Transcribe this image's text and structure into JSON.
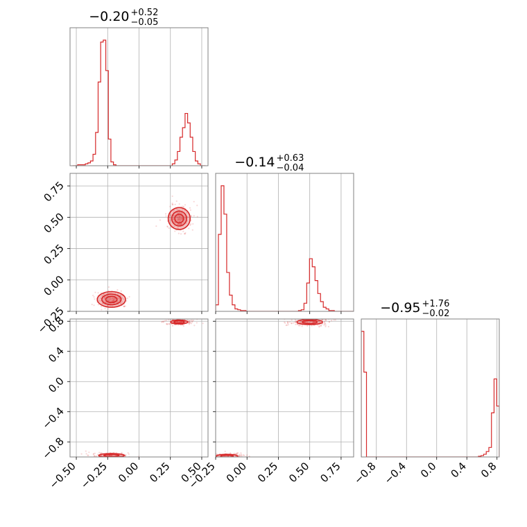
{
  "chart_data": {
    "type": "corner",
    "color": "#d62728",
    "grid": true,
    "parameters": [
      {
        "title": {
          "median": "−0.20",
          "plus": "+0.52",
          "minus": "−0.05"
        },
        "range": [
          -0.55,
          0.55
        ],
        "ticks": [
          -0.5,
          -0.25,
          0.0,
          0.25,
          0.5
        ],
        "tick_labels": [
          "−0.50",
          "−0.25",
          "0.00",
          "0.25",
          "0.50"
        ]
      },
      {
        "title": {
          "median": "−0.14",
          "plus": "+0.63",
          "minus": "−0.04"
        },
        "range": [
          -0.25,
          0.85
        ],
        "ticks": [
          -0.25,
          0.0,
          0.25,
          0.5,
          0.75
        ],
        "tick_labels": [
          "−0.25",
          "0.00",
          "0.25",
          "0.50",
          "0.75"
        ]
      },
      {
        "title": {
          "median": "−0.95",
          "plus": "+1.76",
          "minus": "−0.02"
        },
        "range": [
          -1.0,
          0.83
        ],
        "ticks": [
          -0.8,
          -0.4,
          0.0,
          0.4,
          0.8
        ],
        "tick_labels": [
          "−0.8",
          "−0.4",
          "0.0",
          "0.4",
          "0.8"
        ]
      }
    ],
    "histograms": [
      {
        "param": 0,
        "bin_edges_range": [
          -0.53,
          0.53
        ],
        "counts": [
          0,
          0,
          1,
          1,
          1,
          2,
          3,
          5,
          12,
          35,
          88,
          130,
          132,
          100,
          28,
          4,
          1,
          0,
          0,
          0,
          0,
          0,
          0,
          0,
          0,
          0,
          0,
          0,
          0,
          0,
          0,
          0,
          0,
          0,
          0,
          0,
          0,
          0,
          0,
          2,
          6,
          15,
          30,
          40,
          55,
          45,
          30,
          15,
          5,
          2,
          0,
          0
        ]
      },
      {
        "param": 1,
        "bin_edges_range": [
          -0.25,
          0.85
        ],
        "counts": [
          8,
          95,
          155,
          120,
          48,
          20,
          8,
          3,
          2,
          1,
          1,
          0,
          0,
          0,
          0,
          0,
          0,
          0,
          0,
          0,
          0,
          0,
          0,
          0,
          0,
          0,
          0,
          0,
          0,
          0,
          1,
          2,
          10,
          35,
          65,
          55,
          38,
          22,
          12,
          5,
          3,
          1,
          1,
          0,
          0,
          0,
          0,
          0,
          0,
          0
        ]
      },
      {
        "param": 2,
        "bin_edges_range": [
          -1.0,
          0.83
        ],
        "counts": [
          185,
          125,
          0,
          0,
          0,
          0,
          0,
          0,
          0,
          0,
          0,
          0,
          0,
          0,
          0,
          0,
          0,
          0,
          0,
          0,
          0,
          0,
          0,
          0,
          0,
          0,
          0,
          0,
          0,
          0,
          0,
          0,
          0,
          0,
          0,
          0,
          0,
          0,
          0,
          0,
          0,
          0,
          0,
          0,
          0,
          1,
          2,
          4,
          8,
          14,
          65,
          115,
          75
        ]
      }
    ],
    "density_2d": [
      {
        "x_param": 0,
        "y_param": 1,
        "modes": [
          {
            "center": [
              -0.22,
              -0.155
            ],
            "spread": [
              0.045,
              0.025
            ],
            "contour_levels": [
              1.0,
              1.7,
              2.5
            ]
          },
          {
            "center": [
              0.32,
              0.49
            ],
            "spread": [
              0.035,
              0.035
            ],
            "contour_levels": [
              1.0,
              1.7,
              2.5
            ]
          }
        ]
      },
      {
        "x_param": 0,
        "y_param": 2,
        "modes": [
          {
            "center": [
              -0.22,
              -0.98
            ],
            "spread": [
              0.06,
              0.015
            ],
            "contour_levels": [
              1.0,
              1.7
            ]
          },
          {
            "center": [
              0.32,
              0.79
            ],
            "spread": [
              0.04,
              0.015
            ],
            "contour_levels": [
              1.0,
              1.7
            ]
          }
        ]
      },
      {
        "x_param": 1,
        "y_param": 2,
        "modes": [
          {
            "center": [
              -0.16,
              -0.99
            ],
            "spread": [
              0.05,
              0.015
            ],
            "contour_levels": [
              1.0,
              1.7
            ]
          },
          {
            "center": [
              0.5,
              0.79
            ],
            "spread": [
              0.06,
              0.02
            ],
            "contour_levels": [
              1.0,
              1.7
            ]
          }
        ]
      }
    ]
  }
}
